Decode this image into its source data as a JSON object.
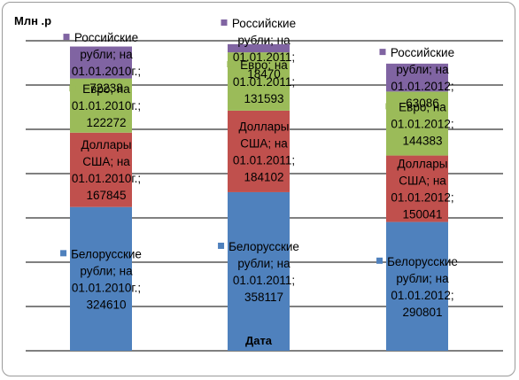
{
  "chart_data": {
    "type": "bar",
    "stacked": true,
    "ylabel": "Млн .р",
    "xlabel": "Дата",
    "ylim": [
      0,
      700000
    ],
    "grid": true,
    "legend": "none",
    "categories": [
      "",
      "",
      ""
    ],
    "series": [
      {
        "name": "Белорусские рубли",
        "color": "#4f81bd",
        "values": [
          324610,
          358117,
          290801
        ],
        "labels": [
          [
            "Белорусские",
            "рубли; на",
            "01.01.2010г.;",
            "324610"
          ],
          [
            "Белорусские",
            "рубли; на",
            "01.01.2011;",
            "358117"
          ],
          [
            "Белорусские",
            "рубли; на",
            "01.01.2012;",
            "290801"
          ]
        ]
      },
      {
        "name": "Доллары США",
        "color": "#c0504d",
        "values": [
          167845,
          184102,
          150041
        ],
        "labels": [
          [
            "Доллары",
            "США; на",
            "01.01.2010г.;",
            "167845"
          ],
          [
            "Доллары",
            "США; на",
            "01.01.2011;",
            "184102"
          ],
          [
            "Доллары",
            "США; на",
            "01.01.2012;",
            "150041"
          ]
        ]
      },
      {
        "name": "Евро",
        "color": "#9bbb59",
        "values": [
          122272,
          131593,
          144383
        ],
        "labels": [
          [
            "Евро; на",
            "01.01.2010г.;",
            "122272"
          ],
          [
            "Евро; на",
            "01.01.2011;",
            "131593"
          ],
          [
            "Евро; на",
            "01.01.2012;",
            "144383"
          ]
        ]
      },
      {
        "name": "Российские рубли",
        "color": "#8064a2",
        "values": [
          72238,
          18470,
          63086
        ],
        "labels": [
          [
            "Российские",
            "рубли; на",
            "01.01.2010г.;",
            "72238"
          ],
          [
            "Российские",
            "рубли; на",
            "01.01.2011;",
            "18470"
          ],
          [
            "Российские",
            "рубли; на",
            "01.01.2012;",
            "63086"
          ]
        ]
      }
    ]
  }
}
